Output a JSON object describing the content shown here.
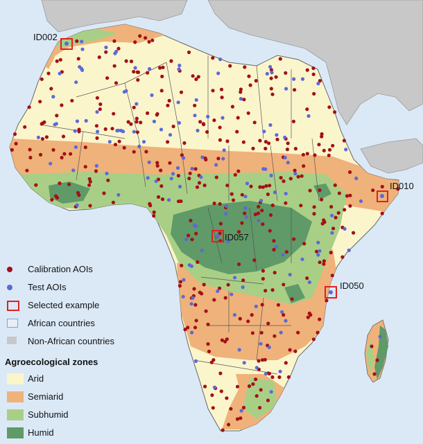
{
  "colors": {
    "ocean": "#dbe9f7",
    "non_african": "#c8c8c8",
    "arid": "#fbf5cc",
    "semiarid": "#efb27a",
    "subhumid": "#a9cf86",
    "humid": "#5f9a68",
    "calibration": "#a41015",
    "test": "#5b6ad8",
    "selected": "#e02020",
    "borders": "#555555"
  },
  "examples": [
    {
      "label": "ID002"
    },
    {
      "label": "ID010"
    },
    {
      "label": "ID057"
    },
    {
      "label": "ID050"
    }
  ],
  "legend": {
    "calibration": "Calibration AOIs",
    "test": "Test AOIs",
    "selected": "Selected example",
    "african": "African countries",
    "non_african": "Non-African countries",
    "zones_title": "Agroecological zones",
    "arid": "Arid",
    "semiarid": "Semiarid",
    "subhumid": "Subhumid",
    "humid": "Humid"
  }
}
